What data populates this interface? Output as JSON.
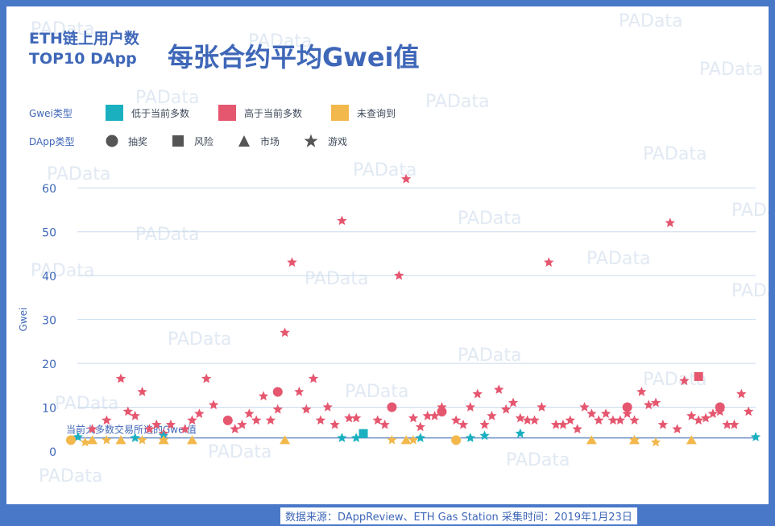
{
  "title": {
    "line1": "ETH链上用户数",
    "line2": "TOP10 DApp",
    "main": "每张合约平均Gwei值"
  },
  "legend": {
    "gwei_type_label": "Gwei类型",
    "gwei_types": [
      {
        "label": "低于当前多数",
        "color": "#1ab0c0"
      },
      {
        "label": "高于当前多数",
        "color": "#e5576f"
      },
      {
        "label": "未查询到",
        "color": "#f2b84b"
      }
    ],
    "dapp_type_label": "DApp类型",
    "dapp_types": [
      {
        "label": "抽奖",
        "shape": "circle"
      },
      {
        "label": "风险",
        "shape": "square"
      },
      {
        "label": "市场",
        "shape": "triangle"
      },
      {
        "label": "游戏",
        "shape": "star"
      }
    ]
  },
  "watermark": "PAData",
  "footer": "数据来源：DAppReview、ETH Gas Station  采集时间：2019年1月23日",
  "colors": {
    "accent": "#4a78c8",
    "grid": "#c9dbee",
    "reference": "#6a8fc8"
  },
  "chart_data": {
    "type": "scatter",
    "ylabel": "Gwei",
    "xlabel": "",
    "ylim": [
      0,
      65
    ],
    "yticks": [
      0,
      10,
      20,
      30,
      40,
      50,
      60
    ],
    "grid": true,
    "reference_line": {
      "value": 3,
      "label": "当前大多数交易所选的Gwei值"
    },
    "series": [
      {
        "name": "高于当前多数",
        "type": "游戏",
        "points": [
          [
            3,
            5
          ],
          [
            5,
            7
          ],
          [
            7,
            16.5
          ],
          [
            8,
            9
          ],
          [
            9,
            8
          ],
          [
            10,
            13.5
          ],
          [
            11,
            5
          ],
          [
            12,
            6
          ],
          [
            13,
            4
          ],
          [
            14,
            6
          ],
          [
            16,
            5
          ],
          [
            17,
            7
          ],
          [
            18,
            8.5
          ],
          [
            19,
            16.5
          ],
          [
            20,
            10.5
          ],
          [
            23,
            5
          ],
          [
            24,
            6
          ],
          [
            25,
            8.5
          ],
          [
            26,
            7
          ],
          [
            27,
            12.5
          ],
          [
            28,
            7
          ],
          [
            29,
            9.5
          ],
          [
            30,
            27
          ],
          [
            31,
            43
          ],
          [
            32,
            13.5
          ],
          [
            33,
            9.5
          ],
          [
            34,
            16.5
          ],
          [
            35,
            7
          ],
          [
            36,
            10
          ],
          [
            37,
            6
          ],
          [
            38,
            52.5
          ],
          [
            39,
            7.5
          ],
          [
            40,
            7.5
          ],
          [
            43,
            7
          ],
          [
            44,
            6
          ],
          [
            46,
            40
          ],
          [
            47,
            62
          ],
          [
            48,
            7.5
          ],
          [
            49,
            5.5
          ],
          [
            50,
            8
          ],
          [
            51,
            8
          ],
          [
            52,
            10
          ],
          [
            54,
            7
          ],
          [
            55,
            6
          ],
          [
            56,
            10
          ],
          [
            57,
            13
          ],
          [
            58,
            6
          ],
          [
            59,
            8
          ],
          [
            60,
            14
          ],
          [
            61,
            9.5
          ],
          [
            62,
            11
          ],
          [
            63,
            7.5
          ],
          [
            64,
            7
          ],
          [
            65,
            7
          ],
          [
            66,
            10
          ],
          [
            67,
            43
          ],
          [
            68,
            6
          ],
          [
            69,
            6
          ],
          [
            70,
            7
          ],
          [
            71,
            5
          ],
          [
            72,
            10
          ],
          [
            73,
            8.5
          ],
          [
            74,
            7
          ],
          [
            75,
            8.5
          ],
          [
            76,
            7
          ],
          [
            77,
            7
          ],
          [
            78,
            8.5
          ],
          [
            79,
            7
          ],
          [
            80,
            13.5
          ],
          [
            81,
            10.5
          ],
          [
            82,
            11
          ],
          [
            83,
            6
          ],
          [
            84,
            52
          ],
          [
            85,
            5
          ],
          [
            86,
            16
          ],
          [
            87,
            8
          ],
          [
            88,
            7
          ],
          [
            89,
            7.5
          ],
          [
            90,
            8.5
          ],
          [
            91,
            9
          ],
          [
            92,
            6
          ],
          [
            93,
            6
          ],
          [
            94,
            13
          ],
          [
            95,
            9
          ]
        ]
      },
      {
        "name": "高于当前多数",
        "type": "抽奖",
        "points": [
          [
            22,
            7
          ],
          [
            29,
            13.5
          ],
          [
            45,
            10
          ],
          [
            52,
            9
          ],
          [
            78,
            10
          ],
          [
            91,
            10
          ]
        ]
      },
      {
        "name": "高于当前多数",
        "type": "风险",
        "points": [
          [
            88,
            17
          ]
        ]
      },
      {
        "name": "低于当前多数",
        "type": "游戏",
        "points": [
          [
            1,
            3.2
          ],
          [
            9,
            3
          ],
          [
            13,
            3.5
          ],
          [
            38,
            3
          ],
          [
            40,
            3
          ],
          [
            49,
            3
          ],
          [
            56,
            3
          ],
          [
            58,
            3.5
          ],
          [
            63,
            4
          ],
          [
            96,
            3.2
          ]
        ]
      },
      {
        "name": "低于当前多数",
        "type": "风险",
        "points": [
          [
            41,
            4
          ]
        ]
      },
      {
        "name": "未查询到",
        "type": "抽奖",
        "points": [
          [
            0,
            2.5
          ],
          [
            54,
            2.5
          ]
        ]
      },
      {
        "name": "未查询到",
        "type": "游戏",
        "points": [
          [
            2,
            2
          ],
          [
            5,
            2.5
          ],
          [
            10,
            2.5
          ],
          [
            13,
            2.5
          ],
          [
            45,
            2.5
          ],
          [
            48,
            2.5
          ],
          [
            79,
            2.5
          ],
          [
            82,
            2
          ]
        ]
      },
      {
        "name": "未查询到",
        "type": "市场",
        "points": [
          [
            3,
            2.5
          ],
          [
            7,
            2.5
          ],
          [
            13,
            2.5
          ],
          [
            17,
            2.5
          ],
          [
            30,
            2.5
          ],
          [
            47,
            2.5
          ],
          [
            73,
            2.5
          ],
          [
            79,
            2.5
          ],
          [
            87,
            2.5
          ]
        ]
      }
    ]
  }
}
